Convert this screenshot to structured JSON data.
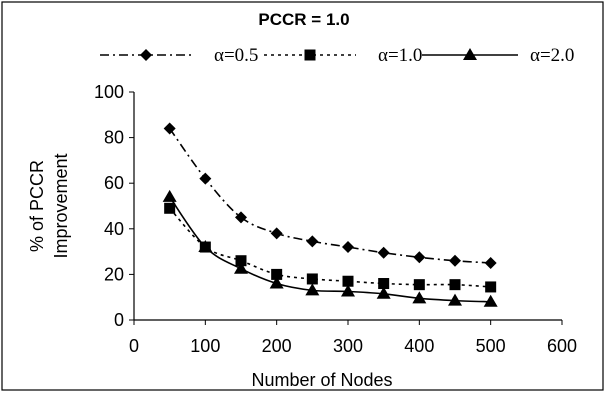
{
  "chart_data": {
    "type": "line",
    "title": "PCCR = 1.0",
    "xlabel": "Number of Nodes",
    "ylabel": [
      "% of PCCR",
      "Improvement"
    ],
    "xlim": [
      0,
      600
    ],
    "ylim": [
      0,
      100
    ],
    "xticks": [
      0,
      100,
      200,
      300,
      400,
      500,
      600
    ],
    "yticks": [
      0,
      20,
      40,
      60,
      80,
      100
    ],
    "grid": false,
    "legend_position": "top",
    "x": [
      50,
      100,
      150,
      200,
      250,
      300,
      350,
      400,
      450,
      500
    ],
    "series": [
      {
        "name": "α=0.5",
        "marker": "diamond",
        "line": "dash-dot",
        "values": [
          84,
          62,
          45,
          38,
          34.5,
          32,
          29.5,
          27.5,
          26,
          25
        ]
      },
      {
        "name": "α=1.0",
        "marker": "square",
        "line": "dotted",
        "values": [
          49,
          32,
          26,
          20,
          18,
          17,
          16,
          15.5,
          15.5,
          14.5
        ]
      },
      {
        "name": "α=2.0",
        "marker": "triangle",
        "line": "solid",
        "values": [
          54,
          32,
          22.5,
          16,
          13,
          12.5,
          11.5,
          9.5,
          8.5,
          8
        ]
      }
    ]
  }
}
